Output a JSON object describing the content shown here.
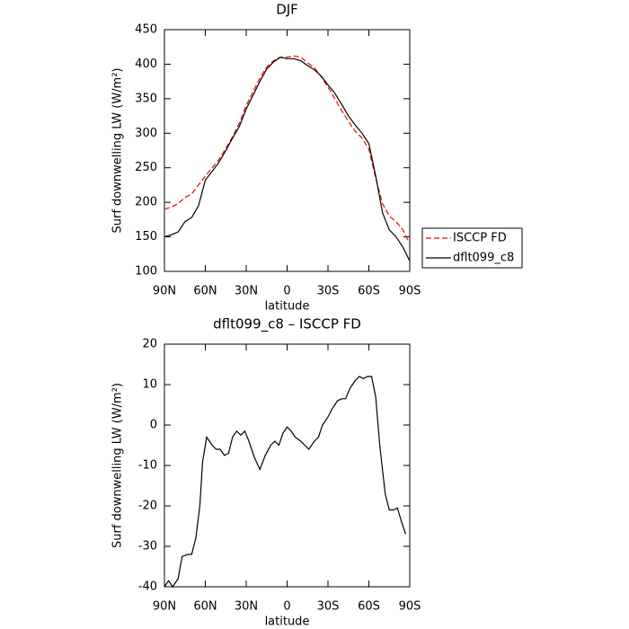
{
  "chart_data": [
    {
      "type": "line",
      "title": "DJF",
      "x_label": "latitude",
      "y_label": "Surf downwelling LW (W/m²)",
      "x": [
        90,
        85,
        80,
        75,
        70,
        65,
        60,
        55,
        50,
        45,
        40,
        35,
        30,
        25,
        20,
        15,
        10,
        5,
        0,
        -5,
        -10,
        -15,
        -20,
        -25,
        -30,
        -35,
        -40,
        -45,
        -50,
        -55,
        -60,
        -65,
        -70,
        -75,
        -80,
        -85,
        -90
      ],
      "series": [
        {
          "name": "ISCCP FD",
          "color": "#ff0000",
          "linestyle": "dashed",
          "values": [
            190,
            193,
            198,
            207,
            212,
            225,
            238,
            250,
            262,
            278,
            295,
            315,
            340,
            360,
            380,
            396,
            405,
            410,
            410,
            412,
            410,
            402,
            395,
            382,
            367,
            350,
            333,
            317,
            303,
            293,
            277,
            235,
            198,
            180,
            172,
            160,
            140
          ]
        },
        {
          "name": "dflt099_c8",
          "color": "#000000",
          "linestyle": "solid",
          "values": [
            150,
            153,
            157,
            172,
            178,
            195,
            232,
            245,
            258,
            275,
            293,
            310,
            335,
            355,
            375,
            393,
            403,
            410,
            408,
            408,
            405,
            398,
            392,
            383,
            370,
            358,
            342,
            325,
            312,
            300,
            285,
            238,
            185,
            160,
            150,
            135,
            115
          ]
        }
      ],
      "xlim": [
        90,
        -90
      ],
      "xticks": [
        {
          "value": 90,
          "label": "90N"
        },
        {
          "value": 60,
          "label": "60N"
        },
        {
          "value": 30,
          "label": "30N"
        },
        0,
        {
          "value": -30,
          "label": "30S"
        },
        {
          "value": -60,
          "label": "60S"
        },
        {
          "value": -90,
          "label": "90S"
        }
      ],
      "ylim": [
        100,
        450
      ],
      "yticks": [
        100,
        150,
        200,
        250,
        300,
        350,
        400,
        450
      ],
      "legend": "right"
    },
    {
      "type": "line",
      "title": "dflt099_c8 – ISCCP FD",
      "x_label": "latitude",
      "y_label": "Surf downwelling LW (W/m²)",
      "x": [
        90,
        87,
        84,
        80,
        77,
        73,
        70,
        67,
        64,
        62,
        59,
        55,
        52,
        49,
        46,
        43,
        40,
        37,
        34,
        31,
        28,
        24,
        20,
        16,
        12,
        9,
        6,
        3,
        0,
        -3,
        -6,
        -10,
        -13,
        -16,
        -20,
        -23,
        -26,
        -30,
        -33,
        -37,
        -40,
        -43,
        -46,
        -50,
        -53,
        -56,
        -59,
        -62,
        -65,
        -68,
        -72,
        -75,
        -78,
        -81,
        -84,
        -87
      ],
      "series": [
        {
          "color": "#000000",
          "linestyle": "solid",
          "values": [
            -40,
            -38.5,
            -40,
            -38,
            -32.5,
            -32,
            -32,
            -28,
            -20,
            -9,
            -3,
            -5,
            -6,
            -6,
            -7.5,
            -7,
            -3,
            -1.5,
            -2.5,
            -1.5,
            -4,
            -8,
            -11,
            -7.5,
            -5,
            -4,
            -5,
            -2,
            -0.5,
            -1.5,
            -3,
            -4,
            -5,
            -6,
            -4,
            -3,
            0,
            2,
            4,
            6,
            6.5,
            6.5,
            9,
            11,
            12,
            11.5,
            12,
            12,
            7,
            -5,
            -17,
            -21,
            -21,
            -20.5,
            -24,
            -27
          ]
        }
      ],
      "xlim": [
        90,
        -90
      ],
      "xticks": [
        {
          "value": 90,
          "label": "90N"
        },
        {
          "value": 60,
          "label": "60N"
        },
        {
          "value": 30,
          "label": "30N"
        },
        0,
        {
          "value": -30,
          "label": "30S"
        },
        {
          "value": -60,
          "label": "60S"
        },
        {
          "value": -90,
          "label": "90S"
        }
      ],
      "ylim": [
        -40,
        20
      ],
      "yticks": [
        -40,
        -30,
        -20,
        -10,
        0,
        10,
        20
      ]
    }
  ]
}
